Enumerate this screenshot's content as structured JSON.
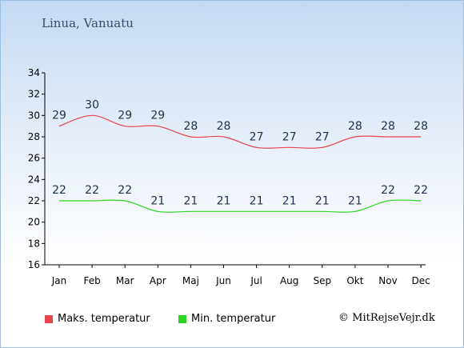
{
  "chart_data": {
    "type": "line",
    "title": "Linua, Vanuatu",
    "categories": [
      "Jan",
      "Feb",
      "Mar",
      "Apr",
      "Maj",
      "Jun",
      "Jul",
      "Aug",
      "Sep",
      "Okt",
      "Nov",
      "Dec"
    ],
    "series": [
      {
        "name": "Maks. temperatur",
        "color": "#e8454a",
        "values": [
          29,
          30,
          29,
          29,
          28,
          28,
          27,
          27,
          27,
          28,
          28,
          28
        ]
      },
      {
        "name": "Min. temperatur",
        "color": "#2bd41f",
        "values": [
          22,
          22,
          22,
          21,
          21,
          21,
          21,
          21,
          21,
          21,
          22,
          22
        ]
      }
    ],
    "ylim": [
      16,
      34
    ],
    "yticks": [
      16,
      18,
      20,
      22,
      24,
      26,
      28,
      30,
      32,
      34
    ],
    "grid": false,
    "legend_position": "bottom"
  },
  "credit": "© MitRejseVejr.dk"
}
